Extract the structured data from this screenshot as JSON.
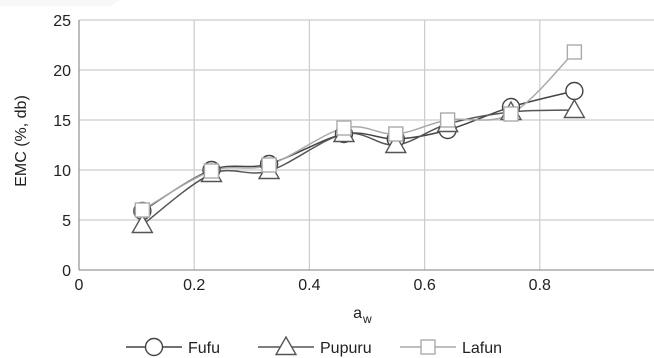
{
  "chart_data": {
    "type": "line",
    "xlabel": "a",
    "xlabel_sub": "w",
    "ylabel": "EMC (%, db)",
    "xlim": [
      0,
      1
    ],
    "ylim": [
      0,
      25
    ],
    "x_ticks": [
      "0",
      "0.2",
      "0.4",
      "0.6",
      "0.8"
    ],
    "y_ticks": [
      "0",
      "5",
      "10",
      "15",
      "20",
      "25"
    ],
    "grid": true,
    "legend_position": "bottom",
    "x": [
      0.11,
      0.23,
      0.33,
      0.46,
      0.55,
      0.64,
      0.75,
      0.86
    ],
    "series": [
      {
        "name": "Fufu",
        "marker": "circle",
        "color": "#444444",
        "values": [
          5.9,
          10.0,
          10.6,
          13.6,
          13.1,
          14.0,
          16.3,
          17.9
        ]
      },
      {
        "name": "Pupuru",
        "marker": "triangle",
        "color": "#555555",
        "values": [
          4.5,
          9.6,
          9.9,
          13.6,
          12.5,
          14.6,
          15.8,
          16.0
        ]
      },
      {
        "name": "Lafun",
        "marker": "square",
        "color": "#aaaaaa",
        "values": [
          6.0,
          9.9,
          10.5,
          14.2,
          13.6,
          15.0,
          15.6,
          21.8
        ]
      }
    ]
  }
}
